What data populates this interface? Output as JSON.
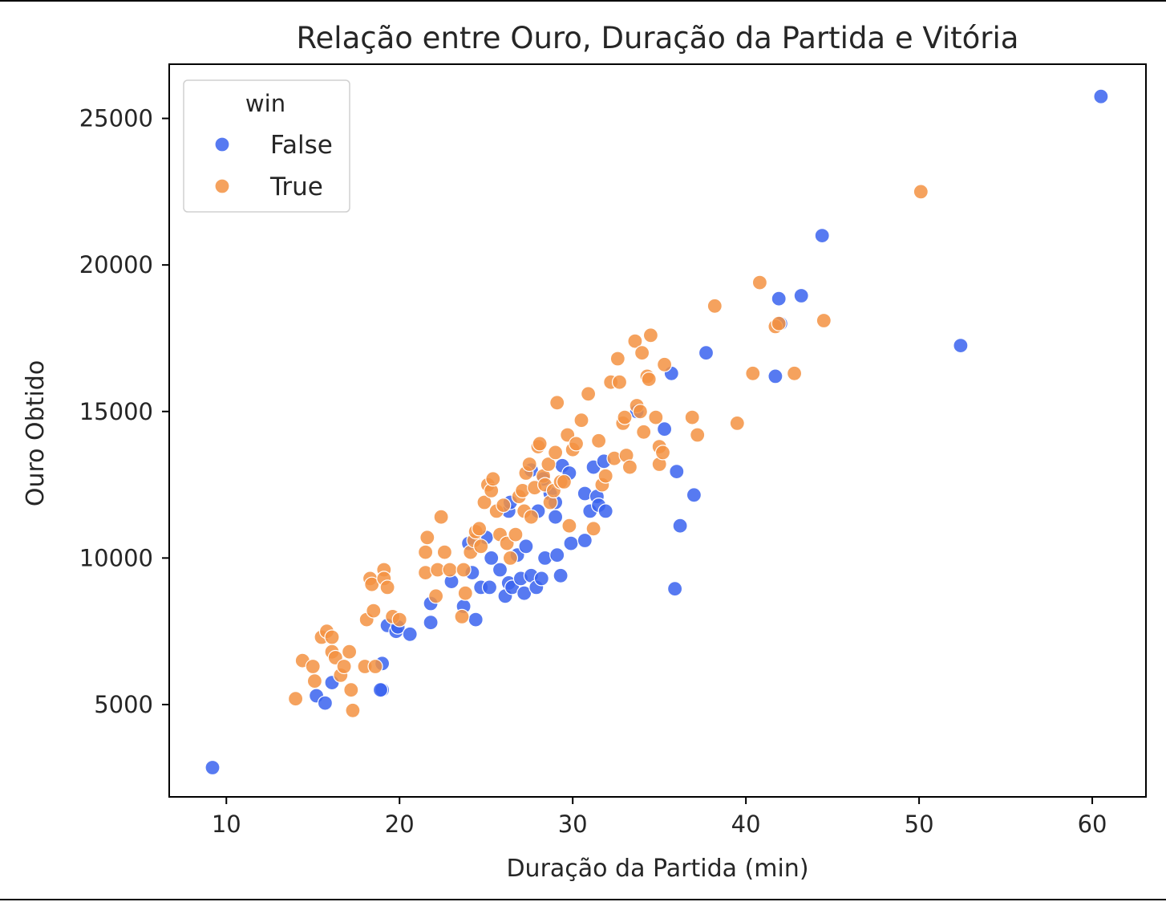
{
  "chart_data": {
    "type": "scatter",
    "title": "Relação entre Ouro, Duração da Partida e Vitória",
    "xlabel": "Duração da Partida (min)",
    "ylabel": "Ouro Obtido",
    "xlim": [
      6.7,
      63.1
    ],
    "ylim": [
      1850,
      26850
    ],
    "xticks": [
      10,
      20,
      30,
      40,
      50,
      60
    ],
    "yticks": [
      5000,
      10000,
      15000,
      20000,
      25000
    ],
    "grid": false,
    "legend": {
      "title": "win",
      "position": "top-left"
    },
    "series": [
      {
        "name": "False",
        "color": "#3a63ee",
        "points": [
          [
            9.2,
            2850
          ],
          [
            15.2,
            5300
          ],
          [
            15.7,
            5050
          ],
          [
            16.1,
            5750
          ],
          [
            19.0,
            5500
          ],
          [
            18.9,
            5500
          ],
          [
            19.0,
            6400
          ],
          [
            19.3,
            7700
          ],
          [
            19.8,
            7500
          ],
          [
            19.9,
            7650
          ],
          [
            20.6,
            7400
          ],
          [
            21.8,
            7800
          ],
          [
            21.8,
            8450
          ],
          [
            23.0,
            9200
          ],
          [
            23.7,
            8350
          ],
          [
            24.4,
            7900
          ],
          [
            24.2,
            9500
          ],
          [
            24.7,
            9000
          ],
          [
            24.0,
            10500
          ],
          [
            25.0,
            10700
          ],
          [
            25.2,
            9000
          ],
          [
            25.3,
            10000
          ],
          [
            25.8,
            9600
          ],
          [
            26.1,
            8700
          ],
          [
            26.3,
            9150
          ],
          [
            26.3,
            11600
          ],
          [
            26.4,
            11900
          ],
          [
            26.5,
            9000
          ],
          [
            26.8,
            10100
          ],
          [
            27.0,
            9300
          ],
          [
            27.2,
            8800
          ],
          [
            27.3,
            10400
          ],
          [
            27.6,
            9400
          ],
          [
            27.9,
            9000
          ],
          [
            28.2,
            9300
          ],
          [
            28.4,
            10000
          ],
          [
            28.0,
            11600
          ],
          [
            28.3,
            12700
          ],
          [
            28.7,
            12200
          ],
          [
            29.0,
            11900
          ],
          [
            29.0,
            11400
          ],
          [
            29.1,
            10100
          ],
          [
            29.3,
            9400
          ],
          [
            29.4,
            13150
          ],
          [
            29.8,
            12900
          ],
          [
            29.9,
            10500
          ],
          [
            30.7,
            10600
          ],
          [
            30.7,
            12200
          ],
          [
            31.0,
            11600
          ],
          [
            31.2,
            13100
          ],
          [
            31.4,
            12100
          ],
          [
            31.5,
            11800
          ],
          [
            31.8,
            13300
          ],
          [
            31.9,
            11600
          ],
          [
            27.6,
            13000
          ],
          [
            33.7,
            15000
          ],
          [
            35.3,
            14400
          ],
          [
            35.7,
            16300
          ],
          [
            35.9,
            8950
          ],
          [
            36.0,
            12950
          ],
          [
            36.2,
            11100
          ],
          [
            37.0,
            12150
          ],
          [
            37.7,
            17000
          ],
          [
            41.7,
            16200
          ],
          [
            41.9,
            18850
          ],
          [
            42.0,
            18000
          ],
          [
            43.2,
            18950
          ],
          [
            44.4,
            21000
          ],
          [
            52.4,
            17250
          ],
          [
            60.5,
            25750
          ]
        ]
      },
      {
        "name": "True",
        "color": "#f39242",
        "points": [
          [
            14.0,
            5200
          ],
          [
            14.4,
            6500
          ],
          [
            15.0,
            6300
          ],
          [
            15.1,
            5800
          ],
          [
            15.5,
            7300
          ],
          [
            15.8,
            7500
          ],
          [
            16.1,
            6800
          ],
          [
            16.1,
            7300
          ],
          [
            16.3,
            6600
          ],
          [
            16.6,
            6000
          ],
          [
            16.8,
            6300
          ],
          [
            17.1,
            6800
          ],
          [
            17.2,
            5500
          ],
          [
            17.3,
            4800
          ],
          [
            18.0,
            6300
          ],
          [
            18.1,
            7900
          ],
          [
            18.3,
            9300
          ],
          [
            18.4,
            9100
          ],
          [
            18.5,
            8200
          ],
          [
            18.6,
            6300
          ],
          [
            19.1,
            9600
          ],
          [
            19.1,
            9300
          ],
          [
            19.3,
            9000
          ],
          [
            19.6,
            8000
          ],
          [
            20.0,
            7900
          ],
          [
            21.5,
            9500
          ],
          [
            21.5,
            10200
          ],
          [
            21.6,
            10700
          ],
          [
            22.1,
            8700
          ],
          [
            22.2,
            9600
          ],
          [
            22.4,
            11400
          ],
          [
            22.6,
            10200
          ],
          [
            22.9,
            9600
          ],
          [
            23.6,
            8000
          ],
          [
            23.7,
            9600
          ],
          [
            23.8,
            8800
          ],
          [
            24.1,
            10200
          ],
          [
            24.3,
            10600
          ],
          [
            24.4,
            10900
          ],
          [
            24.6,
            11000
          ],
          [
            24.7,
            10400
          ],
          [
            24.9,
            11900
          ],
          [
            25.1,
            12500
          ],
          [
            25.3,
            12300
          ],
          [
            25.4,
            12700
          ],
          [
            25.6,
            11600
          ],
          [
            25.8,
            10800
          ],
          [
            26.0,
            11800
          ],
          [
            26.2,
            10500
          ],
          [
            26.4,
            10000
          ],
          [
            26.7,
            10800
          ],
          [
            26.9,
            12100
          ],
          [
            27.1,
            12300
          ],
          [
            27.2,
            11600
          ],
          [
            27.3,
            12900
          ],
          [
            27.5,
            13200
          ],
          [
            27.6,
            11400
          ],
          [
            27.8,
            12400
          ],
          [
            28.0,
            13800
          ],
          [
            28.1,
            13900
          ],
          [
            28.3,
            12800
          ],
          [
            28.4,
            12500
          ],
          [
            28.6,
            13200
          ],
          [
            28.7,
            11900
          ],
          [
            28.9,
            12300
          ],
          [
            29.0,
            13600
          ],
          [
            29.1,
            15300
          ],
          [
            29.3,
            12600
          ],
          [
            29.5,
            12600
          ],
          [
            29.7,
            14200
          ],
          [
            29.8,
            11100
          ],
          [
            30.0,
            13700
          ],
          [
            30.2,
            13900
          ],
          [
            30.5,
            14700
          ],
          [
            30.9,
            15600
          ],
          [
            31.2,
            11000
          ],
          [
            31.5,
            14000
          ],
          [
            31.7,
            12500
          ],
          [
            31.9,
            12800
          ],
          [
            32.2,
            16000
          ],
          [
            32.4,
            13400
          ],
          [
            32.6,
            16800
          ],
          [
            32.7,
            16000
          ],
          [
            32.9,
            14600
          ],
          [
            33.0,
            14800
          ],
          [
            33.1,
            13500
          ],
          [
            33.3,
            13100
          ],
          [
            33.6,
            17400
          ],
          [
            33.7,
            15200
          ],
          [
            33.9,
            15000
          ],
          [
            34.0,
            17000
          ],
          [
            34.1,
            14300
          ],
          [
            34.3,
            16200
          ],
          [
            34.4,
            16100
          ],
          [
            34.5,
            17600
          ],
          [
            34.8,
            14800
          ],
          [
            35.0,
            13200
          ],
          [
            35.0,
            13800
          ],
          [
            35.2,
            13600
          ],
          [
            35.3,
            16600
          ],
          [
            36.9,
            14800
          ],
          [
            37.2,
            14200
          ],
          [
            38.2,
            18600
          ],
          [
            39.5,
            14600
          ],
          [
            40.4,
            16300
          ],
          [
            40.8,
            19400
          ],
          [
            41.7,
            17900
          ],
          [
            41.9,
            18000
          ],
          [
            42.8,
            16300
          ],
          [
            44.5,
            18100
          ],
          [
            50.1,
            22500
          ]
        ]
      }
    ]
  }
}
